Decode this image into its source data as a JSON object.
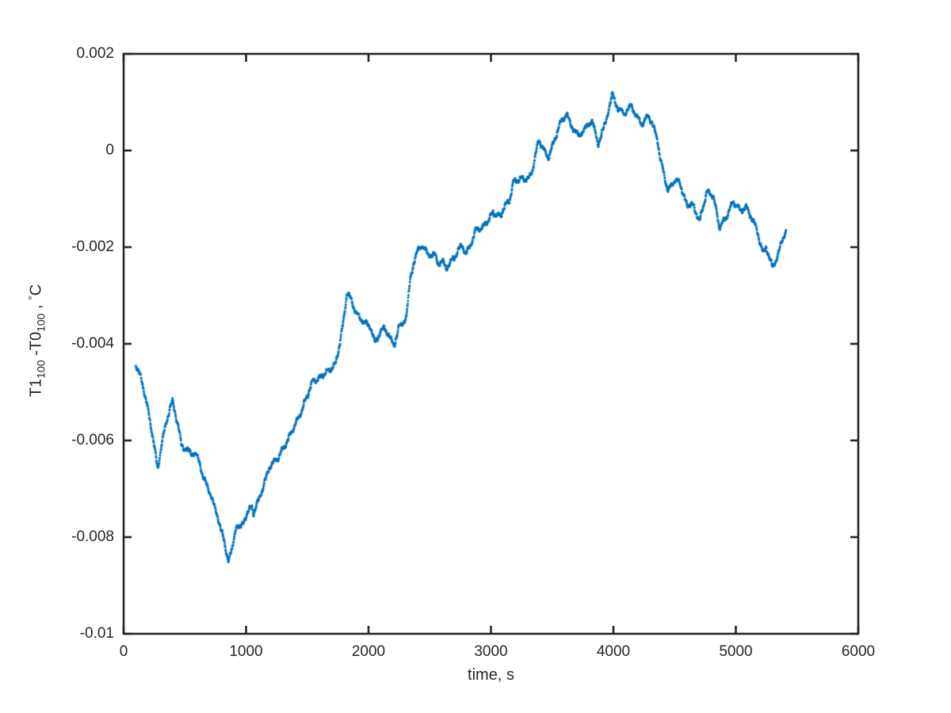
{
  "figure": {
    "background": "#ffffff",
    "title": ""
  },
  "chart_data": {
    "type": "scatter",
    "title": "",
    "xlabel": "time, s",
    "ylabel_plain": "T1_100 - T0_100 , °C",
    "ylabel_parts": {
      "seg1": "T1",
      "sub1": "100",
      "seg2": " -T0",
      "sub2": "100",
      "seg3": " , ",
      "deg": "°",
      "seg4": "C"
    },
    "xlim": [
      0,
      6000
    ],
    "ylim": [
      -0.01,
      0.002
    ],
    "grid": false,
    "legend": "none",
    "colors": {
      "marker": "#0072BD",
      "axis": "#262626",
      "text": "#262626"
    },
    "x_axis": {
      "tick_values": [
        0,
        1000,
        2000,
        3000,
        4000,
        5000,
        6000
      ],
      "tick_labels": [
        "0",
        "1000",
        "2000",
        "3000",
        "4000",
        "5000",
        "6000"
      ]
    },
    "y_axis": {
      "tick_values": [
        0.002,
        0,
        -0.002,
        -0.004,
        -0.006,
        -0.008,
        -0.01
      ],
      "tick_labels": [
        "0.002",
        "0",
        "-0.002",
        "-0.004",
        "-0.006",
        "-0.008",
        "-0.01"
      ]
    },
    "series": [
      {
        "name": "T1_100 - T0_100",
        "marker": "point",
        "x": [
          100,
          115,
          130,
          150,
          170,
          190,
          210,
          240,
          278,
          310,
          350,
          385,
          400,
          420,
          450,
          472,
          500,
          530,
          560,
          590,
          620,
          647,
          680,
          712,
          745,
          776,
          810,
          830,
          854,
          887,
          920,
          955,
          985,
          1048,
          1061,
          1126,
          1191,
          1256,
          1320,
          1390,
          1440,
          1490,
          1547,
          1590,
          1640,
          1690,
          1730,
          1765,
          1795,
          1825,
          1857,
          1903,
          1954,
          2013,
          2052,
          2097,
          2129,
          2162,
          2207,
          2246,
          2278,
          2310,
          2343,
          2370,
          2400,
          2440,
          2485,
          2537,
          2569,
          2602,
          2634,
          2667,
          2699,
          2731,
          2764,
          2796,
          2828,
          2874,
          2938,
          3016,
          3081,
          3100,
          3152,
          3184,
          3249,
          3307,
          3340,
          3391,
          3424,
          3469,
          3508,
          3566,
          3617,
          3650,
          3715,
          3766,
          3824,
          3876,
          3928,
          3973,
          3993,
          4038,
          4090,
          4148,
          4187,
          4232,
          4284,
          4317,
          4362,
          4381,
          4414,
          4446,
          4504,
          4543,
          4601,
          4640,
          4705,
          4763,
          4815,
          4867,
          4925,
          4977,
          5041,
          5086,
          5170,
          5222,
          5248,
          5300,
          5350,
          5410
        ],
        "y": [
          -0.00445,
          -0.00452,
          -0.00462,
          -0.00478,
          -0.00498,
          -0.00522,
          -0.0055,
          -0.00592,
          -0.0066,
          -0.0061,
          -0.00562,
          -0.0053,
          -0.0052,
          -0.0054,
          -0.00575,
          -0.00607,
          -0.00615,
          -0.0062,
          -0.00625,
          -0.0063,
          -0.00645,
          -0.00677,
          -0.00695,
          -0.00713,
          -0.0074,
          -0.00762,
          -0.00795,
          -0.0082,
          -0.00845,
          -0.00828,
          -0.00775,
          -0.00785,
          -0.00765,
          -0.00733,
          -0.00749,
          -0.00705,
          -0.00656,
          -0.0064,
          -0.0061,
          -0.0057,
          -0.00545,
          -0.00515,
          -0.00478,
          -0.00475,
          -0.0046,
          -0.0045,
          -0.0044,
          -0.004,
          -0.00355,
          -0.00295,
          -0.00311,
          -0.00339,
          -0.00352,
          -0.00361,
          -0.00397,
          -0.00377,
          -0.00369,
          -0.00382,
          -0.00406,
          -0.00366,
          -0.00356,
          -0.0034,
          -0.00262,
          -0.0023,
          -0.0021,
          -0.00197,
          -0.00218,
          -0.00213,
          -0.00233,
          -0.00225,
          -0.00243,
          -0.0023,
          -0.00225,
          -0.00208,
          -0.002,
          -0.00213,
          -0.002,
          -0.00162,
          -0.00157,
          -0.00131,
          -0.00139,
          -0.0012,
          -0.00102,
          -0.00061,
          -0.00057,
          -0.00061,
          -0.00041,
          0.00022,
          5e-05,
          -0.00013,
          0.00016,
          0.00057,
          0.00074,
          0.00052,
          0.0003,
          0.00046,
          0.00066,
          0.00013,
          0.00049,
          0.00095,
          0.00115,
          0.00087,
          0.00079,
          0.00095,
          0.0007,
          0.00052,
          0.0007,
          0.00057,
          0.00022,
          -0.00011,
          -0.00049,
          -0.00082,
          -0.00062,
          -0.0007,
          -0.00115,
          -0.00107,
          -0.00143,
          -0.00085,
          -0.00095,
          -0.00161,
          -0.00136,
          -0.00103,
          -0.00123,
          -0.00118,
          -0.00164,
          -0.00213,
          -0.00197,
          -0.00241,
          -0.0021,
          -0.00165
        ]
      }
    ],
    "render": {
      "sample_dt": 2,
      "dot_radius": 1.5,
      "noise_amp": 4e-05,
      "seed": 42
    }
  }
}
